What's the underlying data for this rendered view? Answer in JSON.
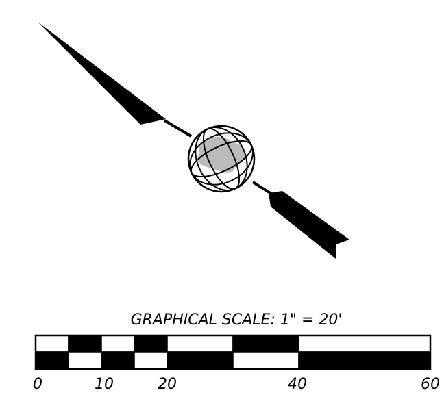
{
  "scale": {
    "title": "GRAPHICAL SCALE: 1\" = 20'",
    "labels": [
      "0",
      "10",
      "20",
      "40",
      "60"
    ]
  }
}
